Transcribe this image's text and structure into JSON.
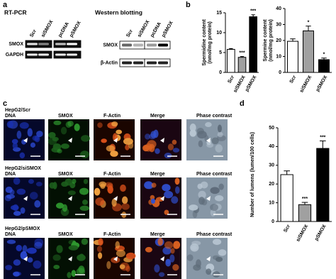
{
  "panel_a": {
    "label": "a",
    "rt_pcr": {
      "title": "RT-PCR",
      "lanes": [
        "Scr",
        "siSMOX",
        "pcDNA",
        "pSMOX"
      ],
      "rows": [
        "SMOX",
        "GAPDH"
      ]
    },
    "western": {
      "title": "Western blotting",
      "lanes": [
        "Scr",
        "siSMOX",
        "pcDNA",
        "pSMOX"
      ],
      "rows": [
        "SMOX",
        "β-Actin"
      ]
    }
  },
  "panel_b": {
    "label": "b"
  },
  "panel_c": {
    "label": "c",
    "rows": [
      "HepG2/Scr",
      "HepG2/siSMOX",
      "HepG2/pSMOX"
    ],
    "columns": [
      "DNA",
      "SMOX",
      "F-Actin",
      "Merge",
      "Phase contrast"
    ]
  },
  "panel_d": {
    "label": "d"
  },
  "chart_data": [
    {
      "type": "bar",
      "ylabel": [
        "Spermidine content",
        "(nmol/mg protein)"
      ],
      "categories": [
        "Scr",
        "siSMOX",
        "pSMOX"
      ],
      "values": [
        5.8,
        3.8,
        14
      ],
      "errors": [
        0.2,
        0.2,
        0.5
      ],
      "significance": [
        null,
        "***",
        "***"
      ],
      "colors": [
        "#ffffff",
        "#a0a0a0",
        "#000000"
      ],
      "ylim": [
        0,
        15
      ],
      "yticks": [
        0,
        5,
        10,
        15
      ]
    },
    {
      "type": "bar",
      "ylabel": [
        "Spermine content",
        "(nmol/mg protein)"
      ],
      "categories": [
        "Scr",
        "siSMOX",
        "pSMOX"
      ],
      "values": [
        19.5,
        26,
        8
      ],
      "errors": [
        1.5,
        3,
        1
      ],
      "significance": [
        null,
        "*",
        "*"
      ],
      "colors": [
        "#ffffff",
        "#a0a0a0",
        "#000000"
      ],
      "ylim": [
        0,
        40
      ],
      "yticks": [
        0,
        10,
        20,
        30,
        40
      ]
    },
    {
      "type": "bar",
      "ylabel": [
        "Number of lumens (lumen/100 cells)"
      ],
      "categories": [
        "Scr",
        "siSMOX",
        "pSMOX"
      ],
      "values": [
        25,
        9,
        39
      ],
      "errors": [
        2,
        1.2,
        4
      ],
      "significance": [
        null,
        "***",
        "***"
      ],
      "colors": [
        "#ffffff",
        "#a0a0a0",
        "#000000"
      ],
      "ylim": [
        0,
        50
      ],
      "yticks": [
        0,
        10,
        20,
        30,
        40,
        50
      ]
    }
  ]
}
